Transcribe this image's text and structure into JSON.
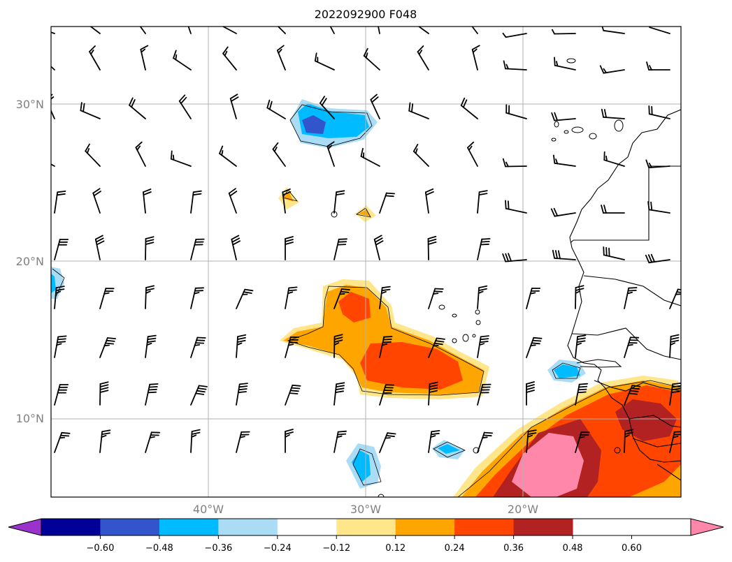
{
  "title": "2022092900 F048",
  "lat_labels": [
    "30°N",
    "20°N",
    "10°N"
  ],
  "lon_labels": [
    "40°W",
    "30°W",
    "20°W"
  ],
  "colorbar": {
    "tick_labels": [
      "−0.60",
      "−0.48",
      "−0.36",
      "−0.24",
      "−0.12",
      "0.12",
      "0.24",
      "0.36",
      "0.48",
      "0.60"
    ],
    "bins": [
      {
        "color": "#9933cc"
      },
      {
        "color": "#000099"
      },
      {
        "color": "#3355cc"
      },
      {
        "color": "#00bbff"
      },
      {
        "color": "#aaddf5"
      },
      {
        "color": "#ffffff"
      },
      {
        "color": "#ffe68a"
      },
      {
        "color": "#ffa500"
      },
      {
        "color": "#ff4500"
      },
      {
        "color": "#b22222"
      },
      {
        "color": "#ff88aa"
      }
    ]
  },
  "map": {
    "gridlines": true,
    "extent_deg": {
      "lon": [
        -50,
        -10
      ],
      "lat": [
        5,
        35
      ]
    }
  }
}
